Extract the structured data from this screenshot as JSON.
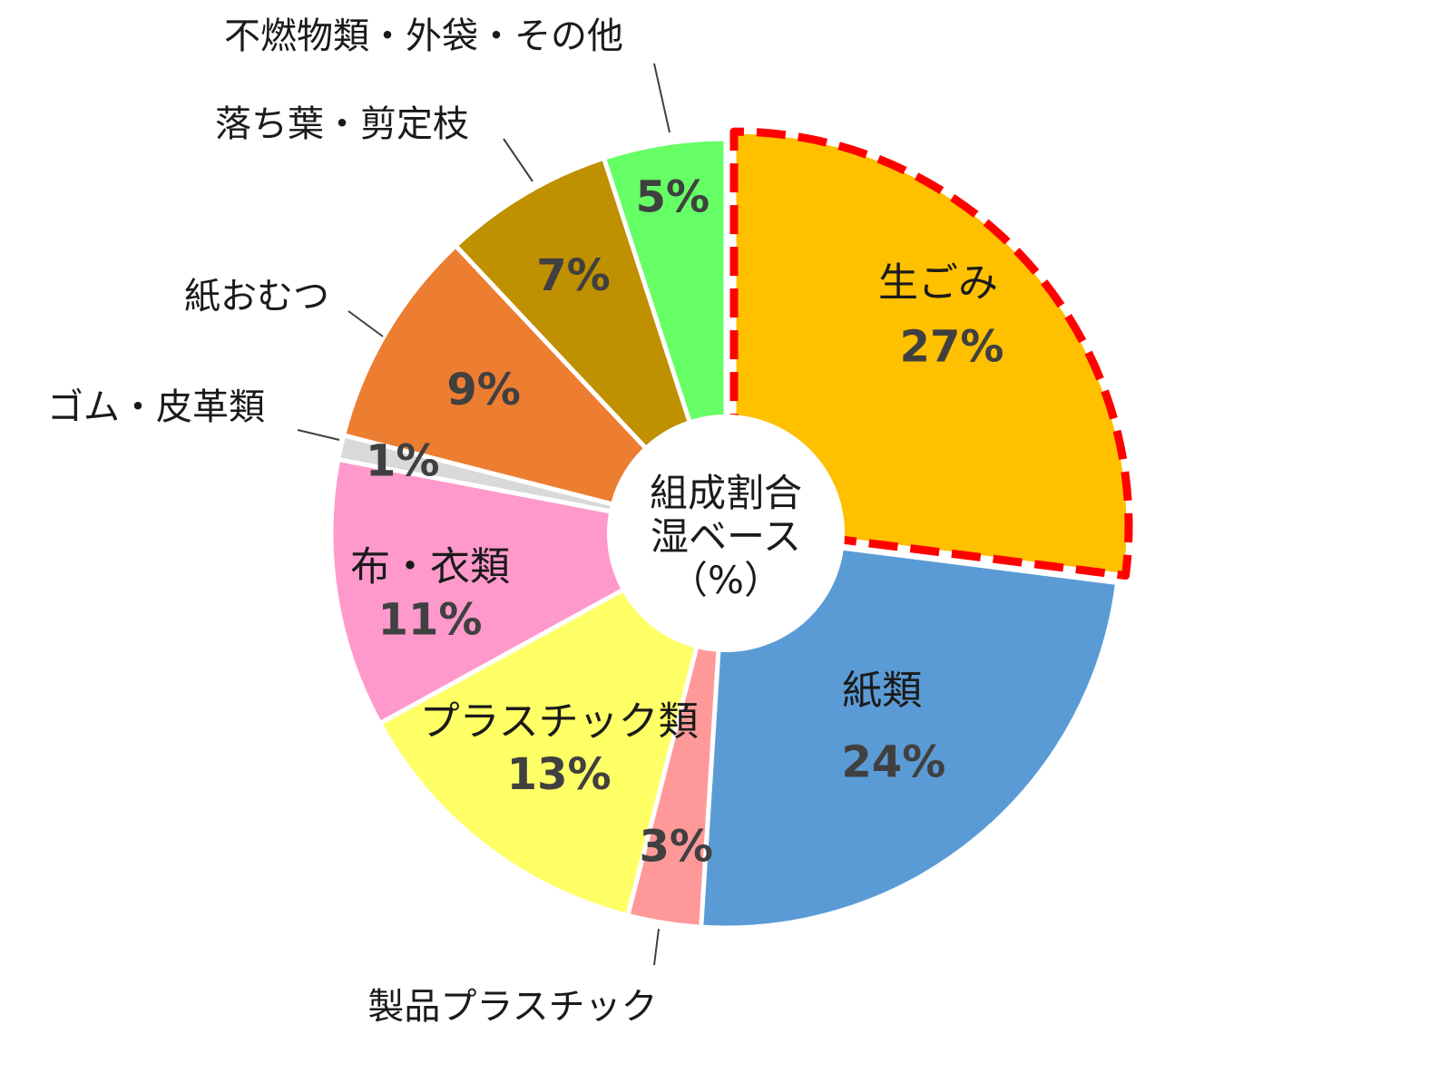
{
  "chart_data": {
    "type": "pie",
    "donut": true,
    "center_label": [
      "組成割合",
      "湿ベース",
      "（%）"
    ],
    "slices": [
      {
        "name": "生ごみ",
        "value": 27,
        "label": "27%",
        "color": "#FFC000",
        "exploded": true,
        "highlight": "red-dashed"
      },
      {
        "name": "紙類",
        "value": 24,
        "label": "24%",
        "color": "#5B9BD5"
      },
      {
        "name": "製品プラスチック",
        "value": 3,
        "label": "3%",
        "color": "#FF9999"
      },
      {
        "name": "プラスチック類",
        "value": 13,
        "label": "13%",
        "color": "#FFFF66"
      },
      {
        "name": "布・衣類",
        "value": 11,
        "label": "11%",
        "color": "#FF99CC"
      },
      {
        "name": "ゴム・皮革類",
        "value": 1,
        "label": "1%",
        "color": "#D9D9D9"
      },
      {
        "name": "紙おむつ",
        "value": 9,
        "label": "9%",
        "color": "#ED7D31"
      },
      {
        "name": "落ち葉・剪定枝",
        "value": 7,
        "label": "7%",
        "color": "#BF9000"
      },
      {
        "name": "不燃物類・外袋・その他",
        "value": 5,
        "label": "5%",
        "color": "#66FF66"
      }
    ]
  }
}
